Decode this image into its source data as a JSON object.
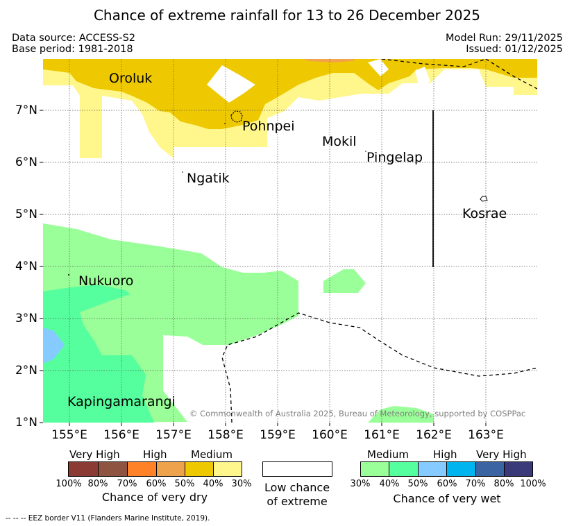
{
  "title": "Chance of extreme rainfall for 13 to 26 December 2025",
  "header": {
    "data_source": "Data source: ACCESS-S2",
    "base_period": "Base period: 1981-2018",
    "model_run": "Model Run: 29/11/2025",
    "issued": "Issued: 01/12/2025"
  },
  "map": {
    "lat_labels": [
      "7°N",
      "6°N",
      "5°N",
      "4°N",
      "3°N",
      "2°N",
      "1°N"
    ],
    "lon_labels": [
      "155°E",
      "156°E",
      "157°E",
      "158°E",
      "159°E",
      "160°E",
      "161°E",
      "162°E",
      "163°E"
    ],
    "places": [
      "Oroluk",
      "Pohnpei",
      "Mokil",
      "Pingelap",
      "Ngatik",
      "Kosrae",
      "Nukuoro",
      "Kapingamarangi"
    ],
    "copyright": "© Commonwealth of Australia 2025, Bureau of Meteorology, supported by COSPPac",
    "colors": {
      "dry_medium_40": "#eec800",
      "dry_medium_30": "#fff68c",
      "wet_medium_30": "#9aff98",
      "wet_medium_40": "#55ff9e",
      "wet_high_50": "#86cbff",
      "dry_high_60": "#f4611d"
    }
  },
  "legend": {
    "dry": {
      "headers": [
        "Very High",
        "High",
        "Medium"
      ],
      "percents": [
        "100%",
        "80%",
        "70%",
        "60%",
        "50%",
        "40%",
        "30%"
      ],
      "colors": [
        "#8b3b33",
        "#8f5441",
        "#ff8228",
        "#eda24b",
        "#eec800",
        "#fff68c"
      ],
      "caption": "Chance of very dry"
    },
    "low": {
      "line1": "Low chance",
      "line2": "of extreme"
    },
    "wet": {
      "headers": [
        "Medium",
        "High",
        "Very High"
      ],
      "percents": [
        "30%",
        "40%",
        "50%",
        "60%",
        "70%",
        "80%",
        "100%"
      ],
      "colors": [
        "#9aff98",
        "#55ff9e",
        "#86cbff",
        "#00b4ef",
        "#3b64a2",
        "#3a3a7a"
      ],
      "caption": "Chance of very wet"
    }
  },
  "footnote": "-- -- -- EEZ border V11 (Flanders Marine Institute, 2019)."
}
